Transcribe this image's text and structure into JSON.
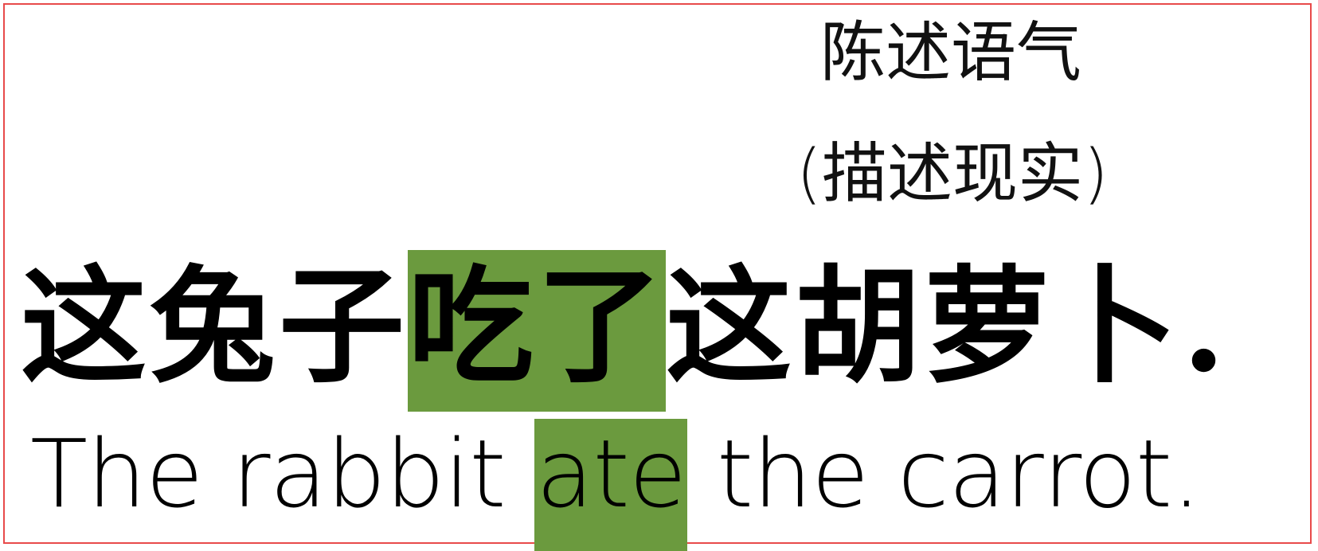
{
  "mood_label": {
    "line1": "陈述语气",
    "line2": "(描述现实)"
  },
  "zh_sentence": {
    "before": "这兔子",
    "highlight": "吃了",
    "after": "这胡萝卜."
  },
  "en_sentence": {
    "before": "The rabbit ",
    "highlight": "ate",
    "after": " the carrot."
  },
  "colors": {
    "highlight": "#6b9a3e",
    "frame": "#e84a4a"
  }
}
